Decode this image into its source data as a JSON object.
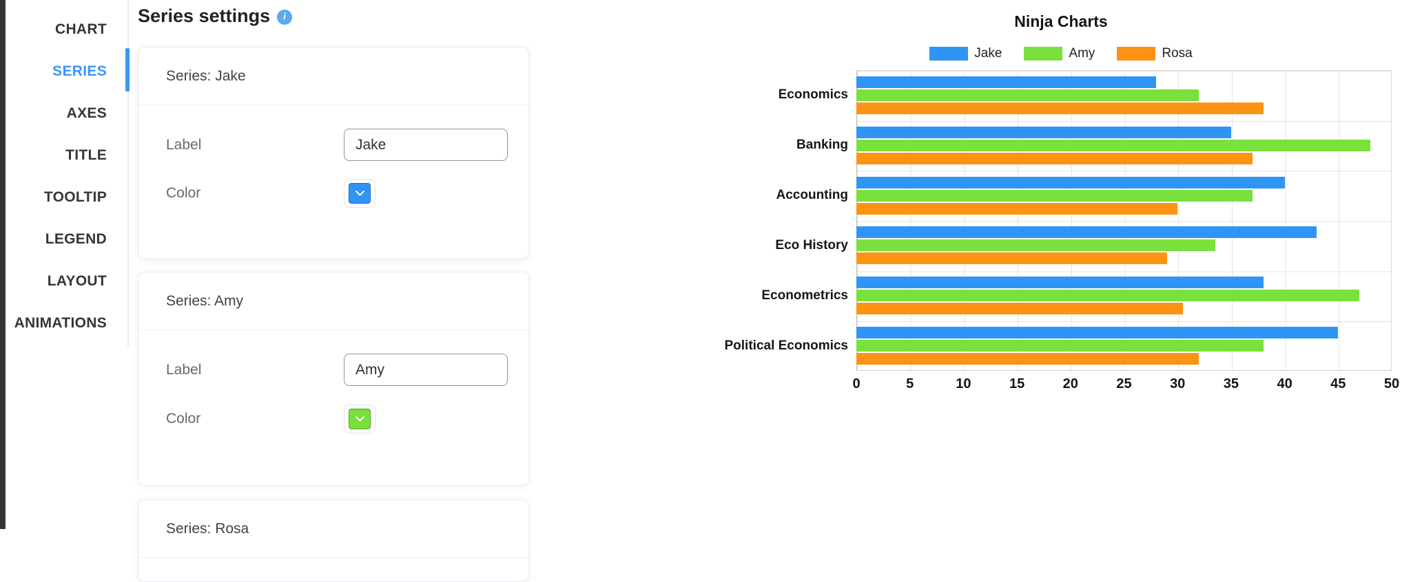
{
  "sidebar": {
    "items": [
      {
        "label": "CHART",
        "active": false
      },
      {
        "label": "SERIES",
        "active": true
      },
      {
        "label": "AXES",
        "active": false
      },
      {
        "label": "TITLE",
        "active": false
      },
      {
        "label": "TOOLTIP",
        "active": false
      },
      {
        "label": "LEGEND",
        "active": false
      },
      {
        "label": "LAYOUT",
        "active": false
      },
      {
        "label": "ANIMATIONS",
        "active": false
      }
    ],
    "active_color": "#3b96f5"
  },
  "settings": {
    "heading": "Series settings",
    "info_icon": "i",
    "cards": [
      {
        "title": "Series: Jake",
        "label_field": {
          "label": "Label",
          "value": "Jake"
        },
        "color_field": {
          "label": "Color",
          "value": "#2e95f4"
        }
      },
      {
        "title": "Series: Amy",
        "label_field": {
          "label": "Label",
          "value": "Amy"
        },
        "color_field": {
          "label": "Color",
          "value": "#79e03c"
        }
      },
      {
        "title": "Series: Rosa"
      }
    ]
  },
  "chart_data": {
    "type": "bar",
    "orientation": "horizontal",
    "title": "Ninja Charts",
    "categories": [
      "Economics",
      "Banking",
      "Accounting",
      "Eco History",
      "Econometrics",
      "Political Economics"
    ],
    "series": [
      {
        "name": "Jake",
        "color": "#2e95f4",
        "values": [
          28,
          35,
          40,
          43,
          38,
          45
        ]
      },
      {
        "name": "Amy",
        "color": "#79e03c",
        "values": [
          32,
          48,
          37,
          33.5,
          47,
          38
        ]
      },
      {
        "name": "Rosa",
        "color": "#fc9312",
        "values": [
          38,
          37,
          30,
          29,
          30.5,
          32
        ]
      }
    ],
    "xlim": [
      0,
      50
    ],
    "xticks": [
      0,
      5,
      10,
      15,
      20,
      25,
      30,
      35,
      40,
      45,
      50
    ],
    "grid": true,
    "legend_position": "top"
  }
}
